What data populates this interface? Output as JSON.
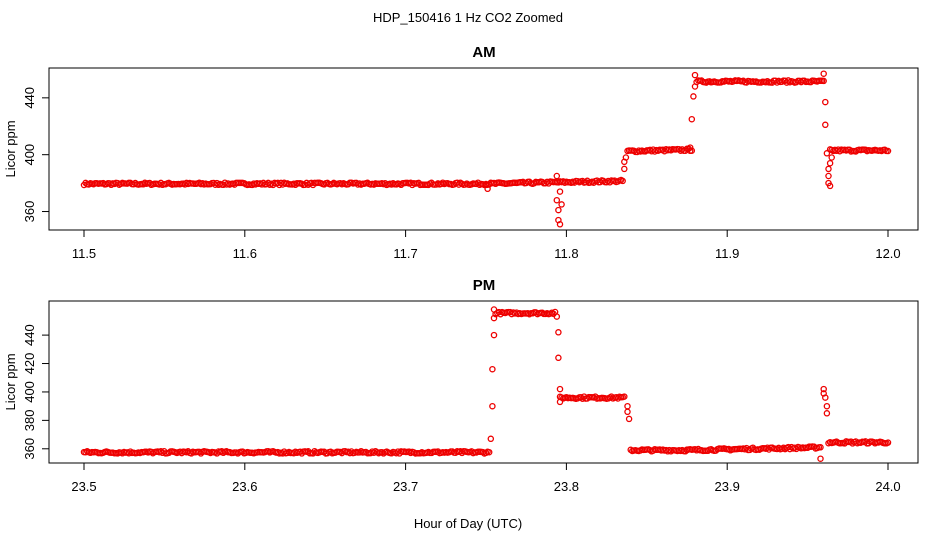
{
  "title": "HDP_150416  1 Hz CO2 Zoomed",
  "xlabel": "Hour of Day (UTC)",
  "chart_data": [
    {
      "type": "scatter",
      "title": "AM",
      "ylabel": "Licor ppm",
      "color": "#ee0000",
      "marker": "open-circle",
      "xlim": [
        11.5,
        12.0
      ],
      "ylim": [
        347,
        461
      ],
      "xticks": [
        11.5,
        11.6,
        11.7,
        11.8,
        11.9,
        12.0
      ],
      "xtick_labels": [
        "11.5",
        "11.6",
        "11.7",
        "11.8",
        "11.9",
        "12.0"
      ],
      "yticks": [
        360,
        400,
        440
      ],
      "ytick_labels": [
        "360",
        "400",
        "440"
      ],
      "grid": false,
      "segments": [
        {
          "x": [
            11.5,
            11.75
          ],
          "y": [
            379.5,
            379.5
          ]
        },
        {
          "x": [
            11.75,
            11.835
          ],
          "y": [
            379.5,
            381.5
          ]
        },
        {
          "x": [
            11.838,
            11.878
          ],
          "y": [
            402.5,
            403.5
          ]
        },
        {
          "x": [
            11.881,
            11.96
          ],
          "y": [
            451.5,
            451.5
          ]
        },
        {
          "x": [
            11.964,
            12.0
          ],
          "y": [
            403,
            403
          ]
        }
      ],
      "points": [
        {
          "x": 11.751,
          "y": 376
        },
        {
          "x": 11.794,
          "y": 385
        },
        {
          "x": 11.794,
          "y": 368
        },
        {
          "x": 11.795,
          "y": 361
        },
        {
          "x": 11.795,
          "y": 354
        },
        {
          "x": 11.796,
          "y": 351
        },
        {
          "x": 11.796,
          "y": 374
        },
        {
          "x": 11.797,
          "y": 365
        },
        {
          "x": 11.836,
          "y": 390
        },
        {
          "x": 11.836,
          "y": 395
        },
        {
          "x": 11.837,
          "y": 398
        },
        {
          "x": 11.877,
          "y": 405
        },
        {
          "x": 11.878,
          "y": 425
        },
        {
          "x": 11.879,
          "y": 441
        },
        {
          "x": 11.88,
          "y": 448
        },
        {
          "x": 11.88,
          "y": 456
        },
        {
          "x": 11.96,
          "y": 457
        },
        {
          "x": 11.961,
          "y": 437
        },
        {
          "x": 11.961,
          "y": 421
        },
        {
          "x": 11.962,
          "y": 401
        },
        {
          "x": 11.963,
          "y": 390
        },
        {
          "x": 11.963,
          "y": 385
        },
        {
          "x": 11.963,
          "y": 380
        },
        {
          "x": 11.964,
          "y": 378
        },
        {
          "x": 11.964,
          "y": 394
        },
        {
          "x": 11.965,
          "y": 398
        }
      ]
    },
    {
      "type": "scatter",
      "title": "PM",
      "ylabel": "Licor ppm",
      "color": "#ee0000",
      "marker": "open-circle",
      "xlim": [
        23.5,
        24.0
      ],
      "ylim": [
        350,
        464
      ],
      "xticks": [
        23.5,
        23.6,
        23.7,
        23.8,
        23.9,
        24.0
      ],
      "xtick_labels": [
        "23.5",
        "23.6",
        "23.7",
        "23.8",
        "23.9",
        "24.0"
      ],
      "yticks": [
        360,
        380,
        400,
        420,
        440
      ],
      "ytick_labels": [
        "360",
        "380",
        "400",
        "420",
        "440"
      ],
      "grid": false,
      "segments": [
        {
          "x": [
            23.5,
            23.752
          ],
          "y": [
            357.5,
            357.5
          ]
        },
        {
          "x": [
            23.756,
            23.793
          ],
          "y": [
            455.5,
            455.5
          ]
        },
        {
          "x": [
            23.796,
            23.836
          ],
          "y": [
            396,
            396
          ]
        },
        {
          "x": [
            23.84,
            23.875
          ],
          "y": [
            359,
            359
          ]
        },
        {
          "x": [
            23.875,
            23.958
          ],
          "y": [
            359,
            361
          ]
        },
        {
          "x": [
            23.963,
            24.0
          ],
          "y": [
            364.5,
            364.5
          ]
        }
      ],
      "points": [
        {
          "x": 23.753,
          "y": 367
        },
        {
          "x": 23.754,
          "y": 390
        },
        {
          "x": 23.754,
          "y": 416
        },
        {
          "x": 23.755,
          "y": 440
        },
        {
          "x": 23.755,
          "y": 452
        },
        {
          "x": 23.755,
          "y": 458
        },
        {
          "x": 23.794,
          "y": 453
        },
        {
          "x": 23.795,
          "y": 442
        },
        {
          "x": 23.795,
          "y": 424
        },
        {
          "x": 23.796,
          "y": 402
        },
        {
          "x": 23.796,
          "y": 393
        },
        {
          "x": 23.838,
          "y": 390
        },
        {
          "x": 23.838,
          "y": 386
        },
        {
          "x": 23.839,
          "y": 381
        },
        {
          "x": 23.958,
          "y": 353
        },
        {
          "x": 23.96,
          "y": 402
        },
        {
          "x": 23.96,
          "y": 399
        },
        {
          "x": 23.961,
          "y": 396
        },
        {
          "x": 23.962,
          "y": 390
        },
        {
          "x": 23.962,
          "y": 385
        }
      ]
    }
  ]
}
